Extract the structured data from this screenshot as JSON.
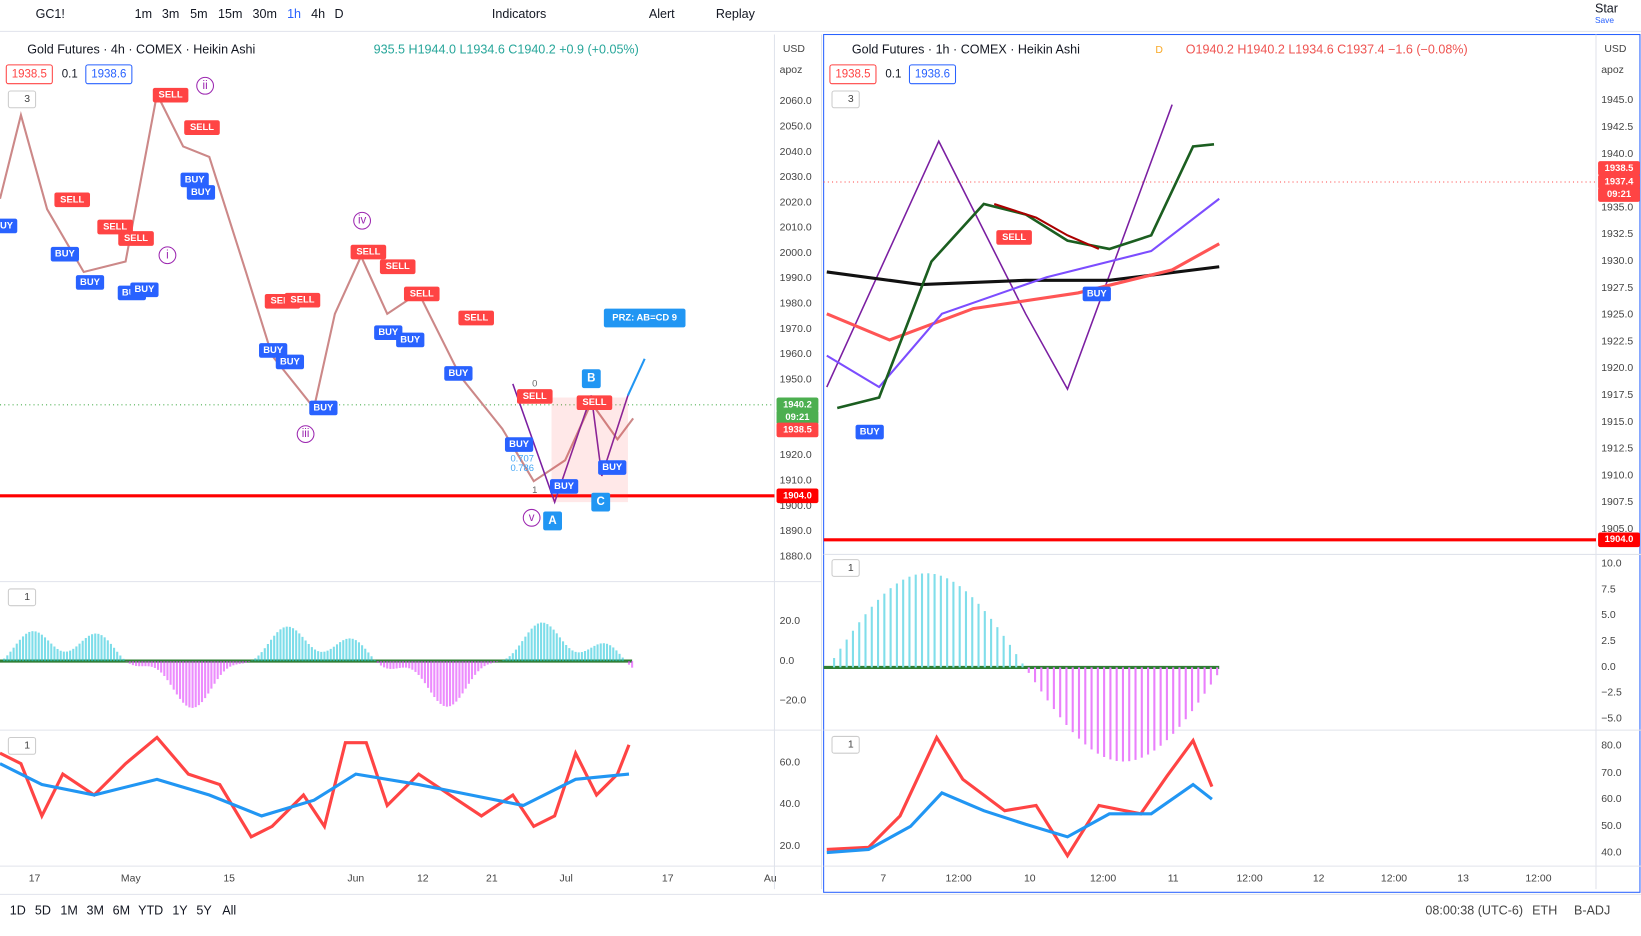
{
  "toolbar": {
    "symbol": "GC1!",
    "intervals": [
      "1m",
      "3m",
      "5m",
      "15m",
      "30m",
      "1h",
      "4h",
      "D"
    ],
    "indicators": "Indicators",
    "alert": "Alert",
    "replay": "Replay",
    "star": "Star",
    "save": "Save"
  },
  "left_chart": {
    "title": "Gold Futures · 4h · COMEX · Heikin Ashi",
    "ohlc": "935.5 H1944.0 L1934.6 C1940.2 +0.9 (+0.05%)",
    "bid": "1938.5",
    "step": "0.1",
    "ask": "1938.6",
    "currency": "USD",
    "scale": "apoz",
    "price_ticks": [
      "2060.0",
      "2050.0",
      "2040.0",
      "2030.0",
      "2020.0",
      "2010.0",
      "2000.0",
      "1990.0",
      "1980.0",
      "1970.0",
      "1960.0",
      "1950.0",
      "1940.0",
      "1930.0",
      "1920.0",
      "1910.0",
      "1900.0",
      "1890.0",
      "1880.0"
    ],
    "price_tags": [
      "1940.2",
      "09:21",
      "1938.5",
      "1904.0"
    ],
    "pane_counts": [
      "3",
      "1",
      "1"
    ],
    "osc_ticks": [
      "20.0",
      "0.0",
      "−20.0"
    ],
    "rsi_ticks": [
      "60.0",
      "40.0",
      "20.0"
    ],
    "x_labels": [
      "17",
      "May",
      "15",
      "Jun",
      "12",
      "21",
      "Jul",
      "17",
      "Au"
    ],
    "signals": [
      "SELL",
      "SELL",
      "BUY",
      "BUY",
      "SELL",
      "SELL",
      "SELL",
      "BUY",
      "BUY",
      "BUY",
      "BUY",
      "SELL",
      "SELL",
      "SELL",
      "SELL",
      "SELL",
      "SELL",
      "BUY",
      "BUY",
      "BUY",
      "BUY",
      "BUY",
      "BUY",
      "SELL",
      "SELL",
      "BUY",
      "BUY",
      "BUY",
      "BUY"
    ],
    "waves": [
      "i",
      "ii",
      "iii",
      "iv",
      "v"
    ],
    "points": [
      "A",
      "B",
      "C"
    ],
    "prz": "PRZ: AB=CD 9",
    "fib": [
      "0",
      "0.707",
      "0.786",
      "1"
    ]
  },
  "right_chart": {
    "title": "Gold Futures · 1h · COMEX · Heikin Ashi",
    "badge": "D",
    "ohlc": "O1940.2 H1940.2 L1934.6 C1937.4 −1.6 (−0.08%)",
    "bid": "1938.5",
    "step": "0.1",
    "ask": "1938.6",
    "currency": "USD",
    "scale": "apoz",
    "price_ticks": [
      "1945.0",
      "1942.5",
      "1940.0",
      "1937.5",
      "1935.0",
      "1932.5",
      "1930.0",
      "1927.5",
      "1925.0",
      "1922.5",
      "1920.0",
      "1917.5",
      "1915.0",
      "1912.5",
      "1910.0",
      "1907.5",
      "1905.0"
    ],
    "price_tags": [
      "1938.5",
      "1937.4",
      "09:21",
      "1904.0"
    ],
    "pane_counts": [
      "3",
      "1",
      "1"
    ],
    "osc_ticks": [
      "10.0",
      "7.5",
      "5.0",
      "2.5",
      "0.0",
      "−2.5",
      "−5.0"
    ],
    "rsi_ticks": [
      "80.0",
      "70.0",
      "60.0",
      "50.0",
      "40.0"
    ],
    "x_labels": [
      "7",
      "12:00",
      "10",
      "12:00",
      "11",
      "12:00",
      "12",
      "12:00",
      "13",
      "12:00"
    ],
    "signals": [
      "SELL",
      "BUY",
      "BUY"
    ]
  },
  "bottom": {
    "ranges": [
      "1D",
      "5D",
      "1M",
      "3M",
      "6M",
      "YTD",
      "1Y",
      "5Y",
      "All"
    ],
    "clock": "08:00:38 (UTC-6)",
    "session": "ETH",
    "adjust": "B-ADJ"
  }
}
